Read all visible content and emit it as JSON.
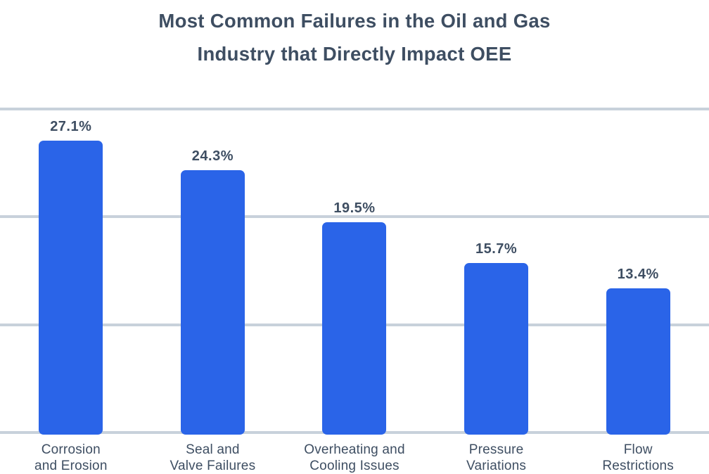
{
  "title": {
    "line1": "Most Common Failures in the Oil and Gas",
    "line2": "Industry that Directly Impact OEE"
  },
  "chart_data": {
    "type": "bar",
    "title": "Most Common Failures in the Oil and Gas Industry that Directly Impact OEE",
    "categories": [
      "Corrosion and Erosion",
      "Seal and Valve Failures",
      "Overheating and Cooling Issues",
      "Pressure Variations",
      "Flow Restrictions"
    ],
    "category_lines": [
      [
        "Corrosion",
        "and Erosion"
      ],
      [
        "Seal and",
        "Valve Failures"
      ],
      [
        "Overheating and",
        "Cooling Issues"
      ],
      [
        "Pressure",
        "Variations"
      ],
      [
        "Flow",
        "Restrictions"
      ]
    ],
    "values": [
      27.1,
      24.3,
      19.5,
      15.7,
      13.4
    ],
    "value_labels": [
      "27.1%",
      "24.3%",
      "19.5%",
      "15.7%",
      "13.4%"
    ],
    "xlabel": "",
    "ylabel": "",
    "ylim": [
      0,
      40
    ],
    "gridline_values": [
      30,
      20,
      10,
      0
    ],
    "grid": true,
    "legend": false,
    "y_tick_labels_visible": false
  },
  "colors": {
    "bar": "#2a64e8",
    "grid": "#c8d1db",
    "text": "#3e4e62",
    "background": "#ffffff"
  }
}
